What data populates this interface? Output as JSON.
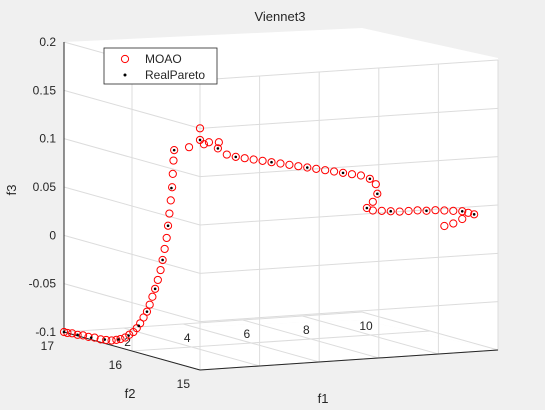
{
  "chart_data": {
    "type": "scatter",
    "title": "Viennet3",
    "xlabel": "f1",
    "ylabel": "f2",
    "zlabel": "f3",
    "xlim": [
      0,
      10
    ],
    "ylim": [
      15,
      17
    ],
    "zlim": [
      -0.1,
      0.2
    ],
    "x_ticks": [
      "2",
      "4",
      "6",
      "8",
      "10"
    ],
    "y_ticks": [
      "15",
      "16",
      "17"
    ],
    "z_ticks": [
      "-0.1",
      "-0.05",
      "0",
      "0.05",
      "0.1",
      "0.15",
      "0.2"
    ],
    "grid": true,
    "legend_position": "top-left",
    "colors": {
      "moao": "#ff0000",
      "real_pareto": "#000000"
    },
    "series": [
      {
        "name": "MOAO",
        "marker": "circle",
        "points": [
          [
            0.0,
            17.0,
            -0.1
          ],
          [
            0.0,
            16.95,
            -0.1
          ],
          [
            0.0,
            16.88,
            -0.099
          ],
          [
            0.0,
            16.8,
            -0.099
          ],
          [
            0.0,
            16.72,
            -0.098
          ],
          [
            0.0,
            16.64,
            -0.098
          ],
          [
            0.0,
            16.55,
            -0.097
          ],
          [
            0.0,
            16.46,
            -0.097
          ],
          [
            0.0,
            16.38,
            -0.096
          ],
          [
            0.0,
            16.3,
            -0.095
          ],
          [
            0.0,
            16.23,
            -0.093
          ],
          [
            0.0,
            16.17,
            -0.091
          ],
          [
            0.0,
            16.1,
            -0.088
          ],
          [
            0.0,
            16.04,
            -0.084
          ],
          [
            0.0,
            15.98,
            -0.08
          ],
          [
            0.0,
            15.93,
            -0.075
          ],
          [
            0.0,
            15.88,
            -0.069
          ],
          [
            0.0,
            15.83,
            -0.062
          ],
          [
            0.0,
            15.78,
            -0.055
          ],
          [
            0.0,
            15.74,
            -0.047
          ],
          [
            0.0,
            15.7,
            -0.038
          ],
          [
            0.0,
            15.66,
            -0.029
          ],
          [
            0.0,
            15.62,
            -0.019
          ],
          [
            0.0,
            15.58,
            -0.008
          ],
          [
            0.0,
            15.55,
            0.003
          ],
          [
            0.0,
            15.52,
            0.015
          ],
          [
            0.0,
            15.49,
            0.027
          ],
          [
            0.0,
            15.47,
            0.04
          ],
          [
            0.0,
            15.45,
            0.053
          ],
          [
            0.0,
            15.43,
            0.067
          ],
          [
            0.0,
            15.41,
            0.081
          ],
          [
            0.0,
            15.4,
            0.095
          ],
          [
            0.0,
            15.39,
            0.109
          ],
          [
            0.0,
            15.38,
            0.12
          ],
          [
            0.5,
            15.38,
            0.122
          ],
          [
            1.0,
            15.38,
            0.124
          ],
          [
            1.5,
            15.38,
            0.125
          ],
          [
            0.0,
            15.0,
            0.138
          ],
          [
            0.0,
            15.0,
            0.15
          ],
          [
            0.3,
            15.0,
            0.135
          ],
          [
            0.6,
            15.0,
            0.128
          ],
          [
            0.9,
            15.0,
            0.121
          ],
          [
            1.2,
            15.0,
            0.118
          ],
          [
            1.5,
            15.0,
            0.116
          ],
          [
            1.8,
            15.0,
            0.114
          ],
          [
            2.1,
            15.0,
            0.112
          ],
          [
            2.4,
            15.0,
            0.11
          ],
          [
            2.7,
            15.0,
            0.108
          ],
          [
            3.0,
            15.0,
            0.106
          ],
          [
            3.3,
            15.0,
            0.104
          ],
          [
            3.6,
            15.0,
            0.102
          ],
          [
            3.9,
            15.0,
            0.1
          ],
          [
            4.2,
            15.0,
            0.098
          ],
          [
            4.5,
            15.0,
            0.096
          ],
          [
            4.8,
            15.0,
            0.094
          ],
          [
            5.1,
            15.0,
            0.092
          ],
          [
            5.4,
            15.0,
            0.09
          ],
          [
            5.7,
            15.0,
            0.086
          ],
          [
            5.9,
            15.0,
            0.08
          ],
          [
            5.95,
            15.0,
            0.07
          ],
          [
            5.8,
            15.0,
            0.062
          ],
          [
            5.6,
            15.0,
            0.056
          ],
          [
            5.8,
            15.0,
            0.053
          ],
          [
            6.1,
            15.0,
            0.052
          ],
          [
            6.4,
            15.0,
            0.051
          ],
          [
            6.7,
            15.0,
            0.05
          ],
          [
            7.0,
            15.0,
            0.05
          ],
          [
            7.3,
            15.0,
            0.05
          ],
          [
            7.6,
            15.0,
            0.049
          ],
          [
            7.9,
            15.0,
            0.049
          ],
          [
            8.2,
            15.0,
            0.048
          ],
          [
            8.5,
            15.0,
            0.047
          ],
          [
            8.8,
            15.0,
            0.046
          ],
          [
            9.0,
            15.0,
            0.044
          ],
          [
            9.2,
            15.0,
            0.042
          ],
          [
            8.8,
            15.0,
            0.038
          ],
          [
            8.5,
            15.0,
            0.034
          ],
          [
            8.2,
            15.0,
            0.032
          ]
        ]
      },
      {
        "name": "RealPareto",
        "marker": "dot",
        "points": [
          [
            0.0,
            17.0,
            -0.1
          ],
          [
            0.0,
            16.8,
            -0.099
          ],
          [
            0.0,
            16.6,
            -0.098
          ],
          [
            0.0,
            16.4,
            -0.096
          ],
          [
            0.0,
            16.2,
            -0.092
          ],
          [
            0.0,
            16.05,
            -0.085
          ],
          [
            0.0,
            15.9,
            -0.072
          ],
          [
            0.0,
            15.78,
            -0.055
          ],
          [
            0.0,
            15.66,
            -0.029
          ],
          [
            0.0,
            15.55,
            0.003
          ],
          [
            0.0,
            15.47,
            0.04
          ],
          [
            0.0,
            15.42,
            0.08
          ],
          [
            0.0,
            15.38,
            0.12
          ],
          [
            0.0,
            15.0,
            0.138
          ],
          [
            0.6,
            15.0,
            0.128
          ],
          [
            1.2,
            15.0,
            0.118
          ],
          [
            2.4,
            15.0,
            0.11
          ],
          [
            3.6,
            15.0,
            0.102
          ],
          [
            4.8,
            15.0,
            0.094
          ],
          [
            5.7,
            15.0,
            0.086
          ],
          [
            5.95,
            15.0,
            0.07
          ],
          [
            5.6,
            15.0,
            0.056
          ],
          [
            6.4,
            15.0,
            0.051
          ],
          [
            7.6,
            15.0,
            0.049
          ],
          [
            8.8,
            15.0,
            0.046
          ],
          [
            9.2,
            15.0,
            0.042
          ]
        ]
      }
    ]
  }
}
